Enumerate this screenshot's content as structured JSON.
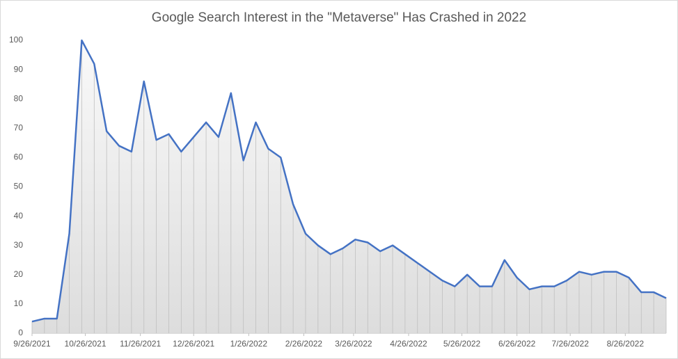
{
  "chart_data": {
    "type": "line",
    "title": "Google Search Interest in the \"Metaverse\" Has Crashed in 2022",
    "x": [
      "9/26/2021",
      "10/3/2021",
      "10/10/2021",
      "10/17/2021",
      "10/24/2021",
      "10/31/2021",
      "11/7/2021",
      "11/14/2021",
      "11/21/2021",
      "11/28/2021",
      "12/5/2021",
      "12/12/2021",
      "12/19/2021",
      "12/26/2021",
      "1/2/2022",
      "1/9/2022",
      "1/16/2022",
      "1/23/2022",
      "1/30/2022",
      "2/6/2022",
      "2/13/2022",
      "2/20/2022",
      "2/27/2022",
      "3/6/2022",
      "3/13/2022",
      "3/20/2022",
      "3/27/2022",
      "4/3/2022",
      "4/10/2022",
      "4/17/2022",
      "4/24/2022",
      "5/1/2022",
      "5/8/2022",
      "5/15/2022",
      "5/22/2022",
      "5/29/2022",
      "6/5/2022",
      "6/12/2022",
      "6/19/2022",
      "6/26/2022",
      "7/3/2022",
      "7/10/2022",
      "7/17/2022",
      "7/24/2022",
      "7/31/2022",
      "8/7/2022",
      "8/14/2022",
      "8/21/2022",
      "8/28/2022",
      "9/4/2022",
      "9/11/2022",
      "9/18/2022"
    ],
    "series": [
      {
        "name": "Metaverse",
        "color": "#4472c4",
        "values": [
          4,
          5,
          5,
          34,
          100,
          92,
          69,
          64,
          62,
          86,
          66,
          68,
          62,
          67,
          72,
          67,
          82,
          59,
          72,
          63,
          60,
          44,
          34,
          30,
          27,
          29,
          32,
          31,
          28,
          30,
          27,
          24,
          21,
          18,
          16,
          20,
          16,
          16,
          25,
          19,
          15,
          16,
          16,
          18,
          21,
          20,
          21,
          21,
          19,
          14,
          14,
          12
        ]
      }
    ],
    "xlim": [
      "9/26/2021",
      "9/18/2022"
    ],
    "xticks": [
      "9/26/2021",
      "10/26/2021",
      "11/26/2021",
      "12/26/2021",
      "1/26/2022",
      "2/26/2022",
      "3/26/2022",
      "4/26/2022",
      "5/26/2022",
      "6/26/2022",
      "7/26/2022",
      "8/26/2022"
    ],
    "ylim": [
      0,
      100
    ],
    "yticks": [
      0,
      10,
      20,
      30,
      40,
      50,
      60,
      70,
      80,
      90,
      100
    ],
    "drop_lines": true,
    "area_fill": true
  }
}
